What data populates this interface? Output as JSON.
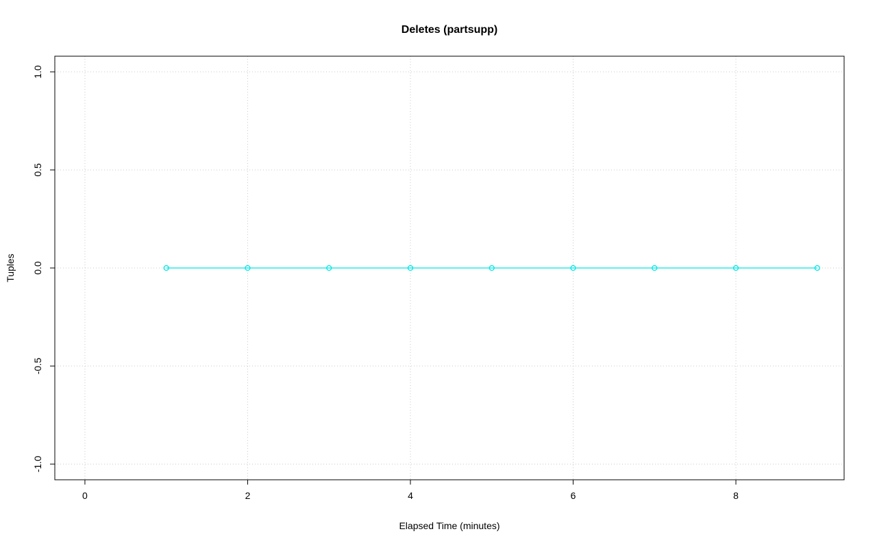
{
  "figure": {
    "background": "#ffffff"
  },
  "chart_data": {
    "type": "line",
    "title": "Deletes (partsupp)",
    "xlabel": "Elapsed Time (minutes)",
    "ylabel": "Tuples",
    "x": [
      1,
      2,
      3,
      4,
      5,
      6,
      7,
      8,
      9
    ],
    "series": [
      {
        "name": "deletes",
        "values": [
          0,
          0,
          0,
          0,
          0,
          0,
          0,
          0,
          0
        ],
        "color": "#00E5E5",
        "marker": "open-circle"
      }
    ],
    "x_ticks": [
      0,
      2,
      4,
      6,
      8
    ],
    "x_tick_labels": [
      "0",
      "2",
      "4",
      "6",
      "8"
    ],
    "y_ticks": [
      -1.0,
      -0.5,
      0.0,
      0.5,
      1.0
    ],
    "y_tick_labels": [
      "-1.0",
      "-0.5",
      "0.0",
      "0.5",
      "1.0"
    ],
    "xlim": [
      -0.37,
      9.33
    ],
    "ylim": [
      -1.08,
      1.08
    ],
    "grid": "dotted",
    "grid_color": "#c8c8c8",
    "axis_color": "#000000",
    "legend": "none"
  }
}
